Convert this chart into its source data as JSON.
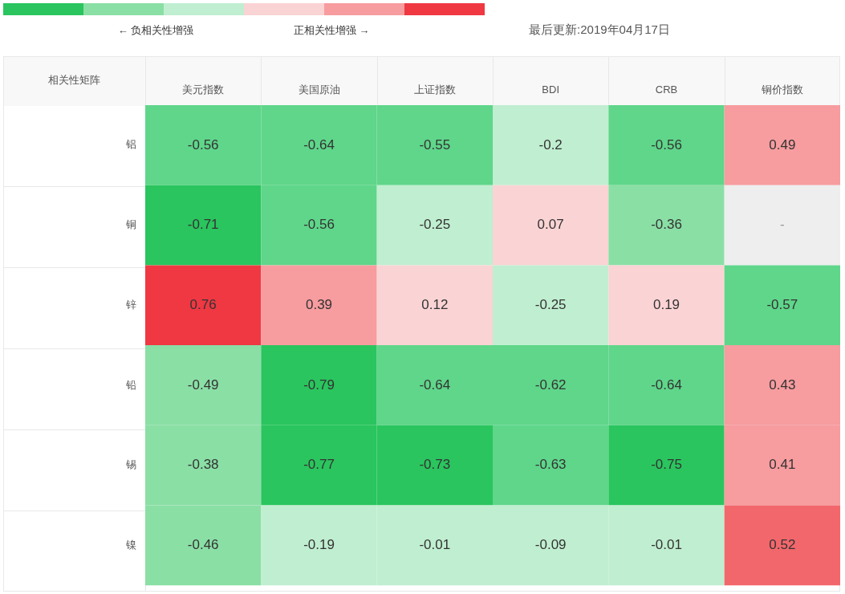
{
  "chart_data": {
    "type": "heatmap",
    "ylabel": "相关性矩阵",
    "categories": [
      "美元指数",
      "美国原油",
      "上证指数",
      "BDI",
      "CRB",
      "铜价指数"
    ],
    "y_categories": [
      "铝",
      "铜",
      "锌",
      "铅",
      "锡",
      "镍"
    ],
    "cells": [
      [
        -0.56,
        -0.64,
        -0.55,
        -0.2,
        -0.56,
        0.49
      ],
      [
        -0.71,
        -0.56,
        -0.25,
        0.07,
        -0.36,
        null
      ],
      [
        0.76,
        0.39,
        0.12,
        -0.25,
        0.19,
        -0.57
      ],
      [
        -0.49,
        -0.79,
        -0.64,
        -0.62,
        -0.64,
        0.43
      ],
      [
        -0.38,
        -0.77,
        -0.73,
        -0.63,
        -0.75,
        0.41
      ],
      [
        -0.46,
        -0.19,
        -0.01,
        -0.09,
        -0.01,
        0.52
      ]
    ],
    "cell_labels": [
      [
        "-0.56",
        "-0.64",
        "-0.55",
        "-0.2",
        "-0.56",
        "0.49"
      ],
      [
        "-0.71",
        "-0.56",
        "-0.25",
        "0.07",
        "-0.36",
        "-"
      ],
      [
        "0.76",
        "0.39",
        "0.12",
        "-0.25",
        "0.19",
        "-0.57"
      ],
      [
        "-0.49",
        "-0.79",
        "-0.64",
        "-0.62",
        "-0.64",
        "0.43"
      ],
      [
        "-0.38",
        "-0.77",
        "-0.73",
        "-0.63",
        "-0.75",
        "0.41"
      ],
      [
        "-0.46",
        "-0.19",
        "-0.01",
        "-0.09",
        "-0.01",
        "0.52"
      ]
    ],
    "colors": [
      [
        "#5fd68a",
        "#5fd68a",
        "#5fd68a",
        "#c0eed0",
        "#5fd68a",
        "#f79c9f"
      ],
      [
        "#2ac55e",
        "#5fd68a",
        "#c0eed0",
        "#fad3d4",
        "#8adfa5",
        "#eeeeee"
      ],
      [
        "#ef3842",
        "#f79c9f",
        "#fad3d4",
        "#c0eed0",
        "#fad3d4",
        "#5fd68a"
      ],
      [
        "#8adfa5",
        "#2ac55e",
        "#5fd68a",
        "#5fd68a",
        "#5fd68a",
        "#f79c9f"
      ],
      [
        "#8adfa5",
        "#2ac55e",
        "#2ac55e",
        "#5fd68a",
        "#2ac55e",
        "#f79c9f"
      ],
      [
        "#8adfa5",
        "#c0eed0",
        "#c0eed0",
        "#c0eed0",
        "#c0eed0",
        "#f2676b"
      ]
    ],
    "annotations": [
      "← 负相关性增强",
      "正相关性增强 →",
      "最后更新:2019年04月17日"
    ]
  }
}
